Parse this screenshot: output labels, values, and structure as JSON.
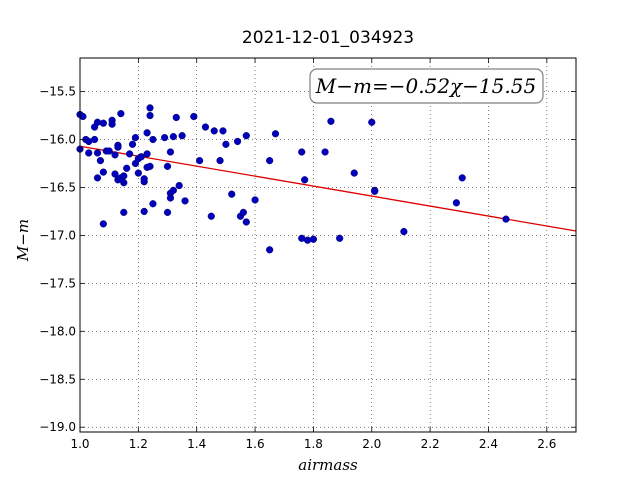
{
  "chart_data": {
    "type": "scatter",
    "title": "2021-12-01_034923",
    "xlabel": "airmass",
    "ylabel": "M−m",
    "xlim": [
      1.0,
      2.7
    ],
    "ylim": [
      -19.05,
      -15.15
    ],
    "xticks": [
      1.0,
      1.2,
      1.4,
      1.6,
      1.8,
      2.0,
      2.2,
      2.4,
      2.6
    ],
    "xtick_labels": [
      "1.0",
      "1.2",
      "1.4",
      "1.6",
      "1.8",
      "2.0",
      "2.2",
      "2.4",
      "2.6"
    ],
    "yticks": [
      -15.5,
      -16.0,
      -16.5,
      -17.0,
      -17.5,
      -18.0,
      -18.5,
      -19.0
    ],
    "ytick_labels": [
      "−15.5",
      "−16.0",
      "−16.5",
      "−17.0",
      "−17.5",
      "−18.0",
      "−18.5",
      "−19.0"
    ],
    "grid": true,
    "annotation": "M−m=−0.52χ−15.55",
    "fit": {
      "slope": -0.52,
      "intercept": -15.55,
      "color": "#dd0000"
    },
    "marker_color": "#0000bb",
    "points": [
      [
        1.0,
        -15.74
      ],
      [
        1.01,
        -15.76
      ],
      [
        1.0,
        -16.1
      ],
      [
        1.02,
        -16.0
      ],
      [
        1.03,
        -16.02
      ],
      [
        1.03,
        -16.14
      ],
      [
        1.05,
        -15.87
      ],
      [
        1.05,
        -16.0
      ],
      [
        1.06,
        -15.82
      ],
      [
        1.06,
        -16.14
      ],
      [
        1.06,
        -16.4
      ],
      [
        1.07,
        -16.22
      ],
      [
        1.08,
        -15.83
      ],
      [
        1.08,
        -16.34
      ],
      [
        1.08,
        -16.88
      ],
      [
        1.09,
        -16.12
      ],
      [
        1.1,
        -16.12
      ],
      [
        1.11,
        -15.8
      ],
      [
        1.11,
        -15.84
      ],
      [
        1.12,
        -16.16
      ],
      [
        1.12,
        -16.36
      ],
      [
        1.13,
        -16.06
      ],
      [
        1.13,
        -16.42
      ],
      [
        1.13,
        -16.08
      ],
      [
        1.14,
        -15.73
      ],
      [
        1.14,
        -16.4
      ],
      [
        1.15,
        -16.45
      ],
      [
        1.15,
        -16.38
      ],
      [
        1.15,
        -16.76
      ],
      [
        1.16,
        -16.3
      ],
      [
        1.17,
        -16.15
      ],
      [
        1.18,
        -16.05
      ],
      [
        1.19,
        -15.98
      ],
      [
        1.19,
        -16.25
      ],
      [
        1.2,
        -16.2
      ],
      [
        1.2,
        -16.35
      ],
      [
        1.21,
        -16.18
      ],
      [
        1.22,
        -16.44
      ],
      [
        1.22,
        -16.41
      ],
      [
        1.22,
        -16.75
      ],
      [
        1.23,
        -15.93
      ],
      [
        1.23,
        -16.15
      ],
      [
        1.23,
        -16.29
      ],
      [
        1.24,
        -15.67
      ],
      [
        1.24,
        -15.75
      ],
      [
        1.24,
        -16.28
      ],
      [
        1.25,
        -16.0
      ],
      [
        1.25,
        -16.67
      ],
      [
        1.29,
        -15.98
      ],
      [
        1.3,
        -16.28
      ],
      [
        1.3,
        -16.76
      ],
      [
        1.31,
        -16.56
      ],
      [
        1.31,
        -16.61
      ],
      [
        1.31,
        -16.13
      ],
      [
        1.32,
        -15.97
      ],
      [
        1.32,
        -16.53
      ],
      [
        1.33,
        -15.77
      ],
      [
        1.34,
        -16.48
      ],
      [
        1.35,
        -15.96
      ],
      [
        1.36,
        -16.64
      ],
      [
        1.39,
        -15.76
      ],
      [
        1.41,
        -16.22
      ],
      [
        1.43,
        -15.87
      ],
      [
        1.45,
        -16.8
      ],
      [
        1.46,
        -15.91
      ],
      [
        1.48,
        -16.22
      ],
      [
        1.49,
        -15.91
      ],
      [
        1.5,
        -16.05
      ],
      [
        1.52,
        -16.57
      ],
      [
        1.54,
        -16.02
      ],
      [
        1.55,
        -16.8
      ],
      [
        1.56,
        -16.76
      ],
      [
        1.57,
        -16.86
      ],
      [
        1.57,
        -15.96
      ],
      [
        1.6,
        -16.63
      ],
      [
        1.65,
        -16.22
      ],
      [
        1.65,
        -17.15
      ],
      [
        1.67,
        -15.94
      ],
      [
        1.76,
        -17.03
      ],
      [
        1.76,
        -16.13
      ],
      [
        1.77,
        -16.42
      ],
      [
        1.78,
        -17.05
      ],
      [
        1.8,
        -17.04
      ],
      [
        1.84,
        -16.13
      ],
      [
        1.86,
        -15.81
      ],
      [
        1.89,
        -17.03
      ],
      [
        1.94,
        -16.35
      ],
      [
        2.0,
        -15.82
      ],
      [
        2.01,
        -16.53
      ],
      [
        2.01,
        -16.54
      ],
      [
        2.11,
        -16.96
      ],
      [
        2.29,
        -16.66
      ],
      [
        2.31,
        -16.4
      ],
      [
        2.46,
        -16.83
      ]
    ]
  }
}
